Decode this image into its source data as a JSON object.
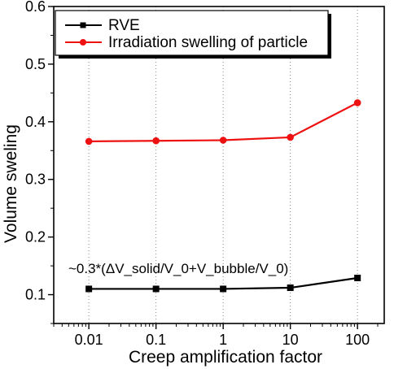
{
  "chart_data": {
    "type": "line",
    "xlabel": "Creep amplification factor",
    "ylabel": "Volume sweling",
    "x": [
      0.01,
      0.1,
      1,
      10,
      100
    ],
    "x_scale": "log",
    "xlim": [
      0.003,
      250
    ],
    "ylim": [
      0.05,
      0.6
    ],
    "x_ticks": [
      "0.01",
      "0.1",
      "1",
      "10",
      "100"
    ],
    "y_ticks": [
      "0.1",
      "0.2",
      "0.3",
      "0.4",
      "0.5",
      "0.6"
    ],
    "grid": "vertical dotted",
    "legend_position": "top-left",
    "series": [
      {
        "name": "RVE",
        "color": "#000000",
        "marker": "square",
        "values": [
          0.11,
          0.11,
          0.11,
          0.112,
          0.129
        ]
      },
      {
        "name": "Irradiation swelling of particle",
        "color": "#ee1111",
        "marker": "circle",
        "values": [
          0.366,
          0.367,
          0.368,
          0.373,
          0.433
        ]
      }
    ],
    "annotation": "~0.3*(ΔV_solid/V_0+V_bubble/V_0)"
  }
}
